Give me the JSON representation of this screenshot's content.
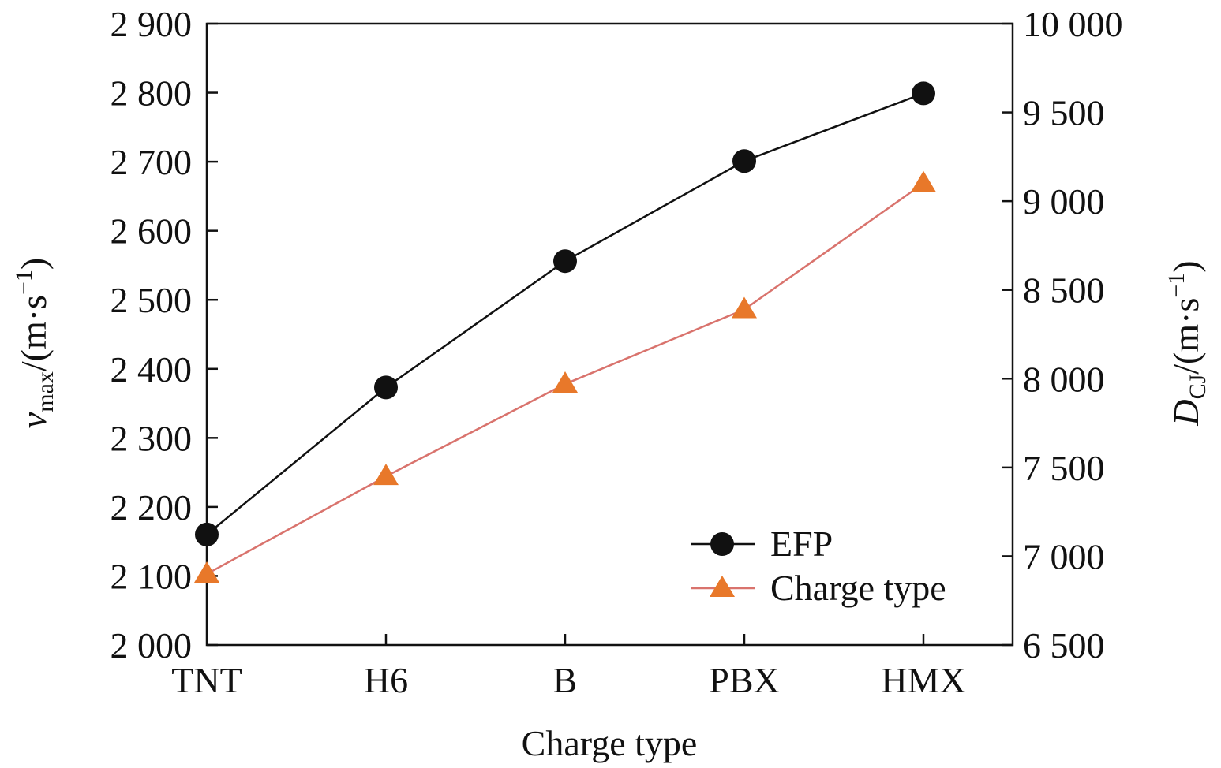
{
  "chart_data": {
    "type": "line",
    "categories": [
      "TNT",
      "H6",
      "B",
      "PBX",
      "HMX"
    ],
    "xlabel": "Charge type",
    "ylabel_left": {
      "symbol": "v",
      "sub": "max",
      "unit": "/(m·s",
      "exp": "−1",
      "close": ")"
    },
    "ylabel_right": {
      "symbol": "D",
      "sub": "CJ",
      "unit": "/(m·s",
      "exp": "−1",
      "close": ")"
    },
    "ylim_left": [
      2000,
      2900
    ],
    "ylim_right": [
      6500,
      10000
    ],
    "yticks_left": [
      {
        "value": 2000,
        "label": "2 000"
      },
      {
        "value": 2100,
        "label": "2 100"
      },
      {
        "value": 2200,
        "label": "2 200"
      },
      {
        "value": 2300,
        "label": "2 300"
      },
      {
        "value": 2400,
        "label": "2 400"
      },
      {
        "value": 2500,
        "label": "2 500"
      },
      {
        "value": 2600,
        "label": "2 600"
      },
      {
        "value": 2700,
        "label": "2 700"
      },
      {
        "value": 2800,
        "label": "2 800"
      },
      {
        "value": 2900,
        "label": "2 900"
      }
    ],
    "yticks_right": [
      {
        "value": 6500,
        "label": "6 500"
      },
      {
        "value": 7000,
        "label": "7 000"
      },
      {
        "value": 7500,
        "label": "7 500"
      },
      {
        "value": 8000,
        "label": "8 000"
      },
      {
        "value": 8500,
        "label": "8 500"
      },
      {
        "value": 9000,
        "label": "9 000"
      },
      {
        "value": 9500,
        "label": "9 500"
      },
      {
        "value": 10000,
        "label": "10 000"
      }
    ],
    "series": [
      {
        "name": "EFP",
        "axis": "left",
        "marker": "circle",
        "color": "#111111",
        "values": [
          2160,
          2373,
          2556,
          2701,
          2799
        ]
      },
      {
        "name": "Charge type",
        "axis": "right",
        "marker": "triangle",
        "color": "#e8782a",
        "line_color": "#d9736d",
        "values": [
          6900,
          7450,
          7970,
          8390,
          9100
        ]
      }
    ],
    "legend": "bottom-right",
    "grid": false
  }
}
